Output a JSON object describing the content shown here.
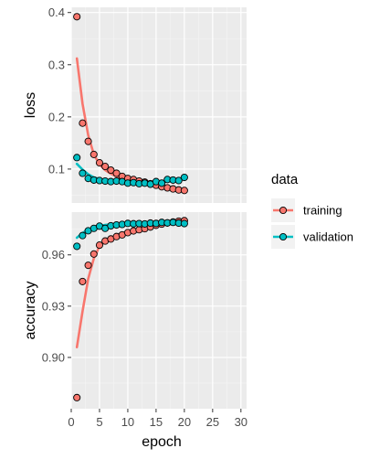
{
  "chart_data": {
    "type": "scatter",
    "xlabel": "epoch",
    "x_ticks": [
      0,
      5,
      10,
      15,
      20,
      25,
      30
    ],
    "xlim": [
      0,
      31
    ],
    "legend": {
      "title": "data",
      "position": "right",
      "entries": [
        "training",
        "validation"
      ]
    },
    "colors": {
      "training": "#F8766D",
      "validation": "#00BFC4"
    },
    "grid": true,
    "facets": [
      {
        "ylabel": "loss",
        "ylim": [
          0.035,
          0.41
        ],
        "y_ticks": [
          0.1,
          0.2,
          0.3,
          0.4
        ],
        "y_tick_labels": [
          "0.1",
          "0.2",
          "0.3",
          "0.4"
        ],
        "series": [
          {
            "name": "training",
            "x": [
              1,
              2,
              3,
              4,
              5,
              6,
              7,
              8,
              9,
              10,
              11,
              12,
              13,
              14,
              15,
              16,
              17,
              18,
              19,
              20
            ],
            "y": [
              0.392,
              0.188,
              0.153,
              0.128,
              0.112,
              0.105,
              0.098,
              0.092,
              0.086,
              0.082,
              0.08,
              0.077,
              0.075,
              0.072,
              0.069,
              0.066,
              0.064,
              0.062,
              0.06,
              0.059
            ],
            "smooth": [
              0.312,
              0.225,
              0.165,
              0.128,
              0.109,
              0.098,
              0.091,
              0.086,
              0.082,
              0.079,
              0.076,
              0.073,
              0.071,
              0.069,
              0.067,
              0.065,
              0.063,
              0.062,
              0.061,
              0.06
            ]
          },
          {
            "name": "validation",
            "x": [
              1,
              2,
              3,
              4,
              5,
              6,
              7,
              8,
              9,
              10,
              11,
              12,
              13,
              14,
              15,
              16,
              17,
              18,
              19,
              20
            ],
            "y": [
              0.122,
              0.092,
              0.082,
              0.079,
              0.078,
              0.077,
              0.076,
              0.077,
              0.076,
              0.073,
              0.074,
              0.072,
              0.073,
              0.071,
              0.076,
              0.073,
              0.08,
              0.079,
              0.078,
              0.084
            ],
            "smooth": [
              0.11,
              0.099,
              0.09,
              0.084,
              0.081,
              0.079,
              0.078,
              0.077,
              0.076,
              0.076,
              0.075,
              0.075,
              0.074,
              0.074,
              0.074,
              0.075,
              0.076,
              0.077,
              0.079,
              0.081
            ]
          }
        ]
      },
      {
        "ylabel": "accuracy",
        "ylim": [
          0.87,
          0.985
        ],
        "y_ticks": [
          0.9,
          0.93,
          0.96
        ],
        "y_tick_labels": [
          "0.90",
          "0.93",
          "0.96"
        ],
        "series": [
          {
            "name": "training",
            "x": [
              1,
              2,
              3,
              4,
              5,
              6,
              7,
              8,
              9,
              10,
              11,
              12,
              13,
              14,
              15,
              16,
              17,
              18,
              19,
              20
            ],
            "y": [
              0.8765,
              0.9444,
              0.9539,
              0.9605,
              0.9657,
              0.9681,
              0.9693,
              0.9707,
              0.9717,
              0.973,
              0.974,
              0.9747,
              0.9753,
              0.9763,
              0.9773,
              0.978,
              0.9787,
              0.9792,
              0.9797,
              0.98
            ],
            "smooth": [
              0.906,
              0.927,
              0.946,
              0.958,
              0.965,
              0.968,
              0.97,
              0.9715,
              0.9727,
              0.9737,
              0.9745,
              0.9753,
              0.976,
              0.9766,
              0.9771,
              0.9776,
              0.978,
              0.9783,
              0.9787,
              0.979
            ]
          },
          {
            "name": "validation",
            "x": [
              1,
              2,
              3,
              4,
              5,
              6,
              7,
              8,
              9,
              10,
              11,
              12,
              13,
              14,
              15,
              16,
              17,
              18,
              19,
              20
            ],
            "y": [
              0.965,
              0.9713,
              0.9741,
              0.9755,
              0.9768,
              0.9755,
              0.977,
              0.9775,
              0.9778,
              0.9784,
              0.9782,
              0.9783,
              0.9781,
              0.9786,
              0.9784,
              0.979,
              0.9787,
              0.979,
              0.9786,
              0.9783
            ],
            "smooth": [
              0.97,
              0.9728,
              0.9748,
              0.976,
              0.977,
              0.9775,
              0.9779,
              0.9781,
              0.9783,
              0.9785,
              0.9786,
              0.9787,
              0.9788,
              0.9788,
              0.9789,
              0.9789,
              0.9789,
              0.9789,
              0.9788,
              0.9787
            ]
          }
        ]
      }
    ]
  }
}
